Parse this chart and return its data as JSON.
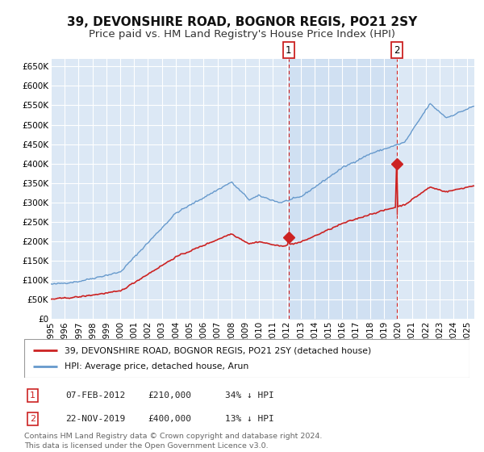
{
  "title": "39, DEVONSHIRE ROAD, BOGNOR REGIS, PO21 2SY",
  "subtitle": "Price paid vs. HM Land Registry's House Price Index (HPI)",
  "title_fontsize": 11,
  "subtitle_fontsize": 9.5,
  "ylim": [
    0,
    670000
  ],
  "ytick_labels": [
    "£0",
    "£50K",
    "£100K",
    "£150K",
    "£200K",
    "£250K",
    "£300K",
    "£350K",
    "£400K",
    "£450K",
    "£500K",
    "£550K",
    "£600K",
    "£650K"
  ],
  "ytick_values": [
    0,
    50000,
    100000,
    150000,
    200000,
    250000,
    300000,
    350000,
    400000,
    450000,
    500000,
    550000,
    600000,
    650000
  ],
  "background_color": "#ffffff",
  "plot_bg_color": "#dce8f5",
  "shade_color": "#c8dbf0",
  "grid_color": "#ffffff",
  "hpi_color": "#6699cc",
  "price_color": "#cc2222",
  "marker1_price": 210000,
  "marker2_price": 400000,
  "sale1_t": 2012.096,
  "sale2_t": 2019.893,
  "sale1_date": "07-FEB-2012",
  "sale1_price": "£210,000",
  "sale1_hpi": "34% ↓ HPI",
  "sale2_date": "22-NOV-2019",
  "sale2_price": "£400,000",
  "sale2_hpi": "13% ↓ HPI",
  "legend_line1": "39, DEVONSHIRE ROAD, BOGNOR REGIS, PO21 2SY (detached house)",
  "legend_line2": "HPI: Average price, detached house, Arun",
  "footnote": "Contains HM Land Registry data © Crown copyright and database right 2024.\nThis data is licensed under the Open Government Licence v3.0."
}
